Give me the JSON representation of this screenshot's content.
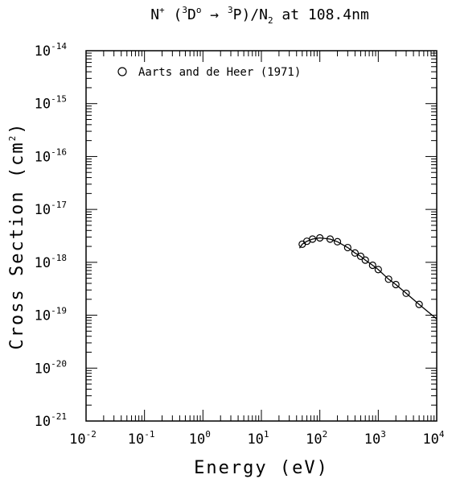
{
  "chart_data": {
    "type": "scatter",
    "title": {
      "ion": "N",
      "charge": "+",
      "open": " (",
      "upper_mult": "3",
      "upper_term": "D",
      "upper_parity": "o",
      "arrow": " → ",
      "lower_mult": "3",
      "lower_term": "P",
      "close": ")/N",
      "target_sub": "2",
      "tail": " at 108.4nm"
    },
    "xlabel": "Energy (eV)",
    "ylabel": {
      "main": "Cross Section (cm",
      "sup": "2",
      "end": ")"
    },
    "x_scale": "log",
    "y_scale": "log",
    "xlim": [
      0.01,
      10000
    ],
    "ylim": [
      1e-21,
      1e-14
    ],
    "x_ticks": [
      {
        "base": "10",
        "exp": "-2",
        "value": 0.01
      },
      {
        "base": "10",
        "exp": "-1",
        "value": 0.1
      },
      {
        "base": "10",
        "exp": "0",
        "value": 1
      },
      {
        "base": "10",
        "exp": "1",
        "value": 10
      },
      {
        "base": "10",
        "exp": "2",
        "value": 100
      },
      {
        "base": "10",
        "exp": "3",
        "value": 1000
      },
      {
        "base": "10",
        "exp": "4",
        "value": 10000
      }
    ],
    "y_ticks": [
      {
        "base": "10",
        "exp": "-21",
        "value": 1e-21
      },
      {
        "base": "10",
        "exp": "-20",
        "value": 1e-20
      },
      {
        "base": "10",
        "exp": "-19",
        "value": 1e-19
      },
      {
        "base": "10",
        "exp": "-18",
        "value": 1e-18
      },
      {
        "base": "10",
        "exp": "-17",
        "value": 1e-17
      },
      {
        "base": "10",
        "exp": "-16",
        "value": 1e-16
      },
      {
        "base": "10",
        "exp": "-15",
        "value": 1e-15
      },
      {
        "base": "10",
        "exp": "-14",
        "value": 1e-14
      }
    ],
    "legend_position": "top-left",
    "series": [
      {
        "name": "Aarts and de Heer (1971)",
        "marker": "open-circle",
        "points": [
          {
            "x": 50,
            "y": 2.2e-18
          },
          {
            "x": 60,
            "y": 2.5e-18
          },
          {
            "x": 75,
            "y": 2.75e-18
          },
          {
            "x": 100,
            "y": 2.9e-18
          },
          {
            "x": 150,
            "y": 2.75e-18
          },
          {
            "x": 200,
            "y": 2.45e-18
          },
          {
            "x": 300,
            "y": 1.9e-18
          },
          {
            "x": 400,
            "y": 1.5e-18
          },
          {
            "x": 500,
            "y": 1.3e-18
          },
          {
            "x": 600,
            "y": 1.1e-18
          },
          {
            "x": 800,
            "y": 8.8e-19
          },
          {
            "x": 1000,
            "y": 7.3e-19
          },
          {
            "x": 1500,
            "y": 4.8e-19
          },
          {
            "x": 2000,
            "y": 3.8e-19
          },
          {
            "x": 3000,
            "y": 2.6e-19
          },
          {
            "x": 5000,
            "y": 1.6e-19
          }
        ]
      },
      {
        "marker": "line",
        "points": [
          {
            "x": 45,
            "y": 1.85e-18
          },
          {
            "x": 50,
            "y": 2.2e-18
          },
          {
            "x": 60,
            "y": 2.5e-18
          },
          {
            "x": 75,
            "y": 2.75e-18
          },
          {
            "x": 100,
            "y": 2.9e-18
          },
          {
            "x": 150,
            "y": 2.75e-18
          },
          {
            "x": 200,
            "y": 2.45e-18
          },
          {
            "x": 300,
            "y": 1.9e-18
          },
          {
            "x": 400,
            "y": 1.5e-18
          },
          {
            "x": 500,
            "y": 1.3e-18
          },
          {
            "x": 600,
            "y": 1.1e-18
          },
          {
            "x": 800,
            "y": 8.8e-19
          },
          {
            "x": 1000,
            "y": 7.3e-19
          },
          {
            "x": 1500,
            "y": 4.8e-19
          },
          {
            "x": 2000,
            "y": 3.8e-19
          },
          {
            "x": 3000,
            "y": 2.6e-19
          },
          {
            "x": 5000,
            "y": 1.6e-19
          },
          {
            "x": 10000,
            "y": 8.5e-20
          }
        ]
      }
    ]
  }
}
